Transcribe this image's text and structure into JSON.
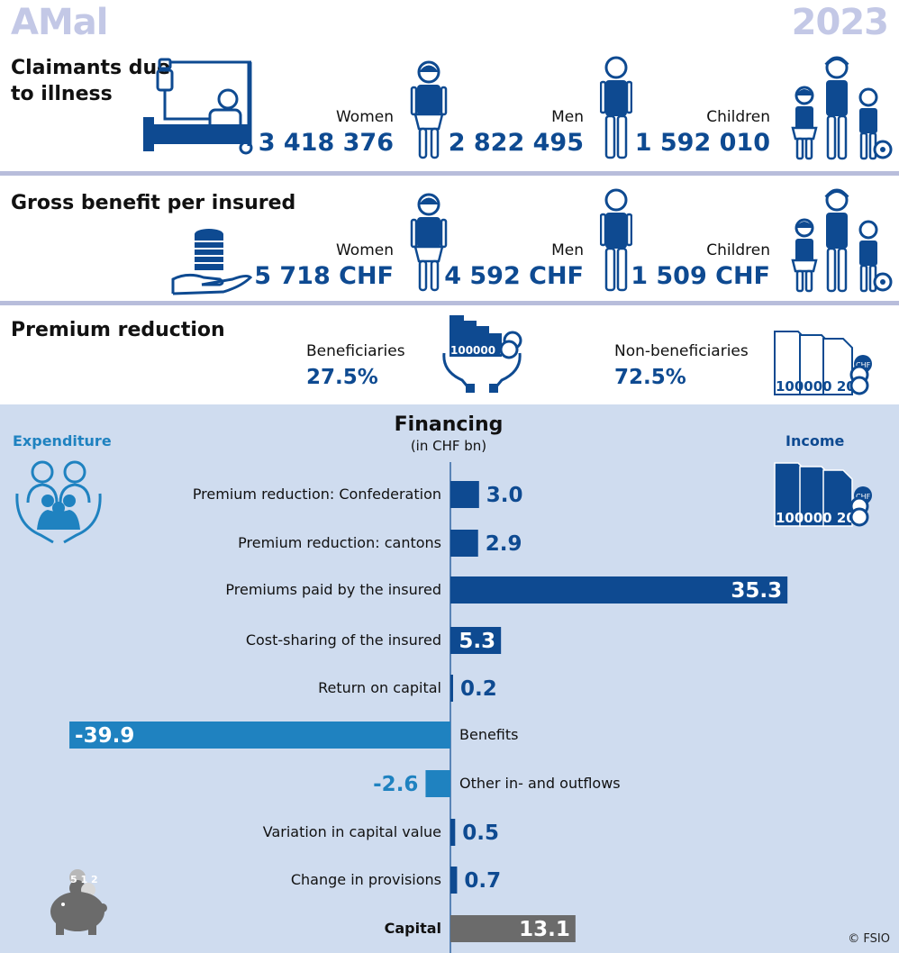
{
  "header": {
    "title": "AMal",
    "year": "2023"
  },
  "claimants": {
    "title_line1": "Claimants due",
    "title_line2": "to illness",
    "women_label": "Women",
    "women_value": "3 418 376",
    "men_label": "Men",
    "men_value": "2 822 495",
    "children_label": "Children",
    "children_value": "1 592 010"
  },
  "benefit": {
    "title": "Gross benefit per insured",
    "women_label": "Women",
    "women_value": "5 718 CHF",
    "men_label": "Men",
    "men_value": "4 592 CHF",
    "children_label": "Children",
    "children_value": "1 509 CHF"
  },
  "premium": {
    "title": "Premium reduction",
    "beneficiaries_label": "Beneficiaries",
    "beneficiaries_value": "27.5%",
    "non_beneficiaries_label": "Non-beneficiaries",
    "non_beneficiaries_value": "72.5%",
    "banknote_text": "100000 20",
    "coin_text": "CHF"
  },
  "financing": {
    "title": "Financing",
    "subtitle": "(in CHF bn)",
    "expenditure_label": "Expenditure",
    "income_label": "Income",
    "piggy_coin_text": "5 1 2"
  },
  "chart_data": {
    "type": "bar",
    "orientation": "horizontal",
    "title": "Financing",
    "subtitle": "(in CHF bn)",
    "categories": [
      "Premium reduction: Confederation",
      "Premium reduction: cantons",
      "Premiums paid by the insured",
      "Cost-sharing of the insured",
      "Return on capital",
      "Benefits",
      "Other in- and outflows",
      "Variation in capital value",
      "Change in provisions",
      "Capital"
    ],
    "values": [
      3.0,
      2.9,
      35.3,
      5.3,
      0.2,
      -39.9,
      -2.6,
      0.5,
      0.7,
      13.1
    ],
    "value_labels": [
      "3.0",
      "2.9",
      "35.3",
      "5.3",
      "0.2",
      "-39.9",
      "-2.6",
      "0.5",
      "0.7",
      "13.1"
    ],
    "colors": {
      "income": "#0e4a91",
      "expenditure": "#1f82c0",
      "capital": "#6b6b6b"
    }
  },
  "footer": {
    "copyright": "© FSIO"
  }
}
